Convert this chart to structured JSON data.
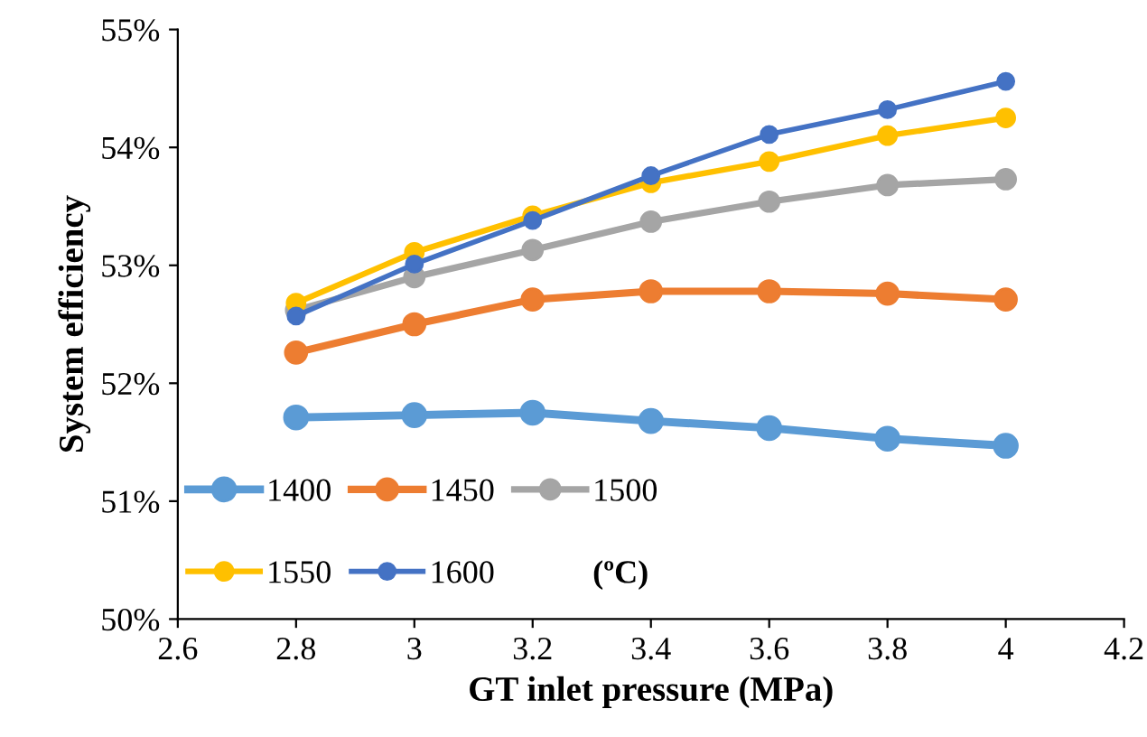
{
  "chart_data": {
    "type": "line",
    "xlabel": "GT inlet pressure (MPa)",
    "ylabel": "System efficiency",
    "x": [
      2.8,
      3.0,
      3.2,
      3.4,
      3.6,
      3.8,
      4.0
    ],
    "series": [
      {
        "name": "1400",
        "color": "#5b9bd5",
        "values": [
          51.71,
          51.73,
          51.75,
          51.68,
          51.62,
          51.53,
          51.47
        ]
      },
      {
        "name": "1450",
        "color": "#ed7d31",
        "values": [
          52.26,
          52.5,
          52.71,
          52.78,
          52.78,
          52.76,
          52.71
        ]
      },
      {
        "name": "1500",
        "color": "#a5a5a5",
        "values": [
          52.62,
          52.9,
          53.13,
          53.37,
          53.54,
          53.68,
          53.73
        ]
      },
      {
        "name": "1550",
        "color": "#ffc000",
        "values": [
          52.68,
          53.11,
          53.42,
          53.7,
          53.88,
          54.1,
          54.25
        ]
      },
      {
        "name": "1600",
        "color": "#4472c4",
        "values": [
          52.57,
          53.01,
          53.38,
          53.76,
          54.11,
          54.32,
          54.56
        ]
      }
    ],
    "legend_title": "(ºC)",
    "xlim": [
      2.6,
      4.2
    ],
    "xticks": [
      2.6,
      2.8,
      3,
      3.2,
      3.4,
      3.6,
      3.8,
      4,
      4.2
    ],
    "ylim": [
      50,
      55
    ],
    "yticks": [
      {
        "value": 50,
        "label": "50%"
      },
      {
        "value": 51,
        "label": "51%"
      },
      {
        "value": 52,
        "label": "52%"
      },
      {
        "value": 53,
        "label": "53%"
      },
      {
        "value": 54,
        "label": "54%"
      },
      {
        "value": 55,
        "label": "55%"
      }
    ],
    "grid": false,
    "legend": "bottom left",
    "marker": "circle",
    "line_style": "solid"
  }
}
